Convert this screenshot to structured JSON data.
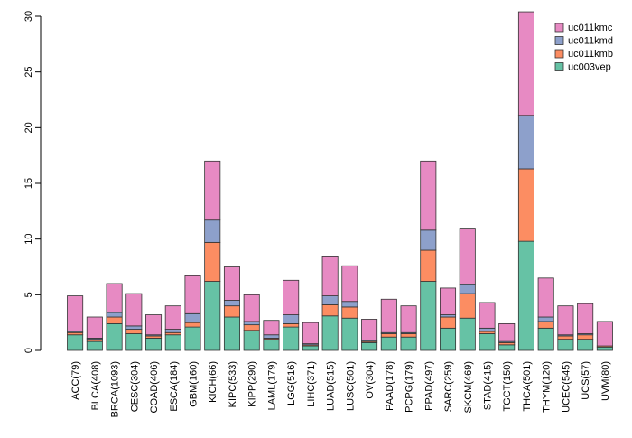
{
  "chart_data": {
    "type": "bar",
    "stacked": true,
    "title": "",
    "xlabel": "",
    "ylabel": "",
    "ylim": [
      0,
      30
    ],
    "yticks": [
      0,
      5,
      10,
      15,
      20,
      25,
      30
    ],
    "legend_position": "top-right",
    "categories": [
      "ACC(79)",
      "BLCA(408)",
      "BRCA(1093)",
      "CESC(304)",
      "COAD(406)",
      "ESCA(184)",
      "GBM(160)",
      "KICH(66)",
      "KIPC(533)",
      "KIPP(290)",
      "LAML(179)",
      "LGG(516)",
      "LIHC(371)",
      "LUAD(515)",
      "LUSC(501)",
      "OV(304)",
      "PAAD(178)",
      "PCPG(179)",
      "PPAD(497)",
      "SARC(259)",
      "SKCM(469)",
      "STAD(415)",
      "TGCT(150)",
      "THCA(501)",
      "THYM(120)",
      "UCEC(545)",
      "UCS(57)",
      "UVM(80)"
    ],
    "series": [
      {
        "name": "uc003vep",
        "color": "#66c2a5",
        "values": [
          1.4,
          0.8,
          2.4,
          1.5,
          1.1,
          1.4,
          2.1,
          6.2,
          3.0,
          1.8,
          1.0,
          2.1,
          0.4,
          3.1,
          2.9,
          0.7,
          1.2,
          1.2,
          6.2,
          2.0,
          2.9,
          1.5,
          0.5,
          9.8,
          2.0,
          1.0,
          1.0,
          0.3
        ]
      },
      {
        "name": "uc011kmb",
        "color": "#fc8d62",
        "values": [
          0.2,
          0.2,
          0.6,
          0.4,
          0.2,
          0.2,
          0.4,
          3.5,
          1.0,
          0.5,
          0.1,
          0.3,
          0.1,
          1.0,
          1.0,
          0.1,
          0.3,
          0.3,
          2.8,
          1.0,
          2.2,
          0.2,
          0.2,
          6.5,
          0.6,
          0.3,
          0.4,
          0.1
        ]
      },
      {
        "name": "uc011kmd",
        "color": "#8da0cb",
        "values": [
          0.1,
          0.1,
          0.4,
          0.3,
          0.1,
          0.3,
          0.8,
          2.0,
          0.5,
          0.3,
          0.3,
          0.8,
          0.1,
          0.8,
          0.5,
          0.1,
          0.1,
          0.1,
          1.8,
          0.2,
          0.8,
          0.3,
          0.1,
          4.8,
          0.4,
          0.1,
          0.1,
          0.0
        ]
      },
      {
        "name": "uc011kmc",
        "color": "#e78ac3",
        "values": [
          3.2,
          1.9,
          2.6,
          2.9,
          1.8,
          2.1,
          3.4,
          5.3,
          3.0,
          2.4,
          1.3,
          3.1,
          1.9,
          3.5,
          3.2,
          1.9,
          3.0,
          2.4,
          6.2,
          2.4,
          5.0,
          2.3,
          1.6,
          9.3,
          3.5,
          2.6,
          2.7,
          2.2
        ]
      }
    ],
    "legend_order": [
      "uc011kmc",
      "uc011kmd",
      "uc011kmb",
      "uc003vep"
    ]
  }
}
